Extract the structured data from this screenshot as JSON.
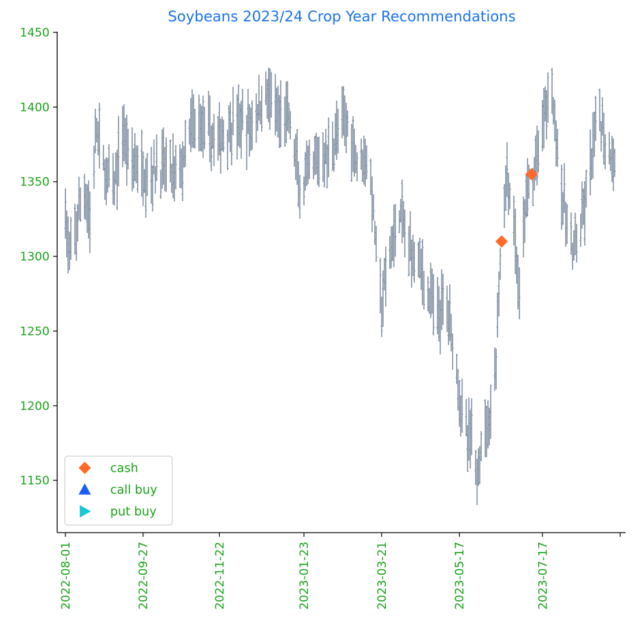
{
  "colors": {
    "title": "#1a73e8",
    "tick_label": "#1aa31a",
    "axis": "#000000",
    "bar": "#7a8a9e",
    "cash": "#ff6a2b",
    "call_buy": "#1a5ff5",
    "put_buy": "#17c8d6",
    "legend_border": "#d0d0d0"
  },
  "chart_data": {
    "type": "ohlc",
    "title": "Soybeans 2023/24 Crop Year Recommendations",
    "xlabel": "",
    "ylabel": "",
    "ylim": [
      1115,
      1450
    ],
    "xlim": [
      "2022-07-26",
      "2023-09-16"
    ],
    "yticks": [
      1150,
      1200,
      1250,
      1300,
      1350,
      1400,
      1450
    ],
    "xticks": [
      "2022-08-01",
      "2022-09-27",
      "2022-11-22",
      "2023-01-23",
      "2023-03-21",
      "2023-05-17",
      "2023-07-17",
      ""
    ],
    "grid": false,
    "legend_position": "lower-left",
    "price_path": [
      [
        "2022-08-01",
        1330
      ],
      [
        "2022-08-04",
        1295
      ],
      [
        "2022-08-09",
        1320
      ],
      [
        "2022-08-15",
        1345
      ],
      [
        "2022-08-19",
        1325
      ],
      [
        "2022-08-24",
        1385
      ],
      [
        "2022-08-30",
        1355
      ],
      [
        "2022-09-06",
        1345
      ],
      [
        "2022-09-12",
        1385
      ],
      [
        "2022-09-16",
        1370
      ],
      [
        "2022-09-23",
        1360
      ],
      [
        "2022-09-30",
        1355
      ],
      [
        "2022-10-07",
        1358
      ],
      [
        "2022-10-14",
        1360
      ],
      [
        "2022-10-20",
        1355
      ],
      [
        "2022-10-27",
        1362
      ],
      [
        "2022-11-01",
        1385
      ],
      [
        "2022-11-08",
        1390
      ],
      [
        "2022-11-15",
        1380
      ],
      [
        "2022-11-22",
        1378
      ],
      [
        "2022-11-28",
        1385
      ],
      [
        "2022-12-05",
        1390
      ],
      [
        "2022-12-12",
        1385
      ],
      [
        "2022-12-19",
        1395
      ],
      [
        "2022-12-27",
        1410
      ],
      [
        "2023-01-04",
        1390
      ],
      [
        "2023-01-11",
        1395
      ],
      [
        "2023-01-17",
        1365
      ],
      [
        "2023-01-20",
        1340
      ],
      [
        "2023-01-27",
        1355
      ],
      [
        "2023-02-03",
        1365
      ],
      [
        "2023-02-10",
        1368
      ],
      [
        "2023-02-17",
        1385
      ],
      [
        "2023-02-24",
        1390
      ],
      [
        "2023-03-03",
        1365
      ],
      [
        "2023-03-09",
        1370
      ],
      [
        "2023-03-14",
        1340
      ],
      [
        "2023-03-17",
        1305
      ],
      [
        "2023-03-21",
        1265
      ],
      [
        "2023-03-24",
        1285
      ],
      [
        "2023-03-28",
        1305
      ],
      [
        "2023-04-03",
        1330
      ],
      [
        "2023-04-10",
        1305
      ],
      [
        "2023-04-17",
        1300
      ],
      [
        "2023-04-24",
        1275
      ],
      [
        "2023-05-01",
        1260
      ],
      [
        "2023-05-08",
        1270
      ],
      [
        "2023-05-12",
        1245
      ],
      [
        "2023-05-16",
        1220
      ],
      [
        "2023-05-19",
        1195
      ],
      [
        "2023-05-23",
        1175
      ],
      [
        "2023-05-26",
        1180
      ],
      [
        "2023-05-30",
        1150
      ],
      [
        "2023-06-02",
        1180
      ],
      [
        "2023-06-06",
        1185
      ],
      [
        "2023-06-09",
        1200
      ],
      [
        "2023-06-13",
        1230
      ],
      [
        "2023-06-16",
        1300
      ],
      [
        "2023-06-21",
        1355
      ],
      [
        "2023-06-26",
        1320
      ],
      [
        "2023-06-30",
        1270
      ],
      [
        "2023-07-05",
        1340
      ],
      [
        "2023-07-10",
        1350
      ],
      [
        "2023-07-14",
        1370
      ],
      [
        "2023-07-19",
        1400
      ],
      [
        "2023-07-24",
        1410
      ],
      [
        "2023-07-28",
        1375
      ],
      [
        "2023-08-01",
        1335
      ],
      [
        "2023-08-04",
        1325
      ],
      [
        "2023-08-08",
        1300
      ],
      [
        "2023-08-11",
        1310
      ],
      [
        "2023-08-15",
        1320
      ],
      [
        "2023-08-18",
        1340
      ],
      [
        "2023-08-23",
        1370
      ],
      [
        "2023-08-28",
        1395
      ],
      [
        "2023-09-01",
        1375
      ],
      [
        "2023-09-06",
        1368
      ],
      [
        "2023-09-08",
        1360
      ]
    ],
    "markers": [
      {
        "series": "cash",
        "x": "2023-06-17",
        "y": 1310
      },
      {
        "series": "cash",
        "x": "2023-07-09",
        "y": 1355
      }
    ],
    "series": [
      {
        "name": "cash",
        "marker": "diamond"
      },
      {
        "name": "call buy",
        "marker": "triangle-up"
      },
      {
        "name": "put buy",
        "marker": "triangle-right"
      }
    ]
  }
}
